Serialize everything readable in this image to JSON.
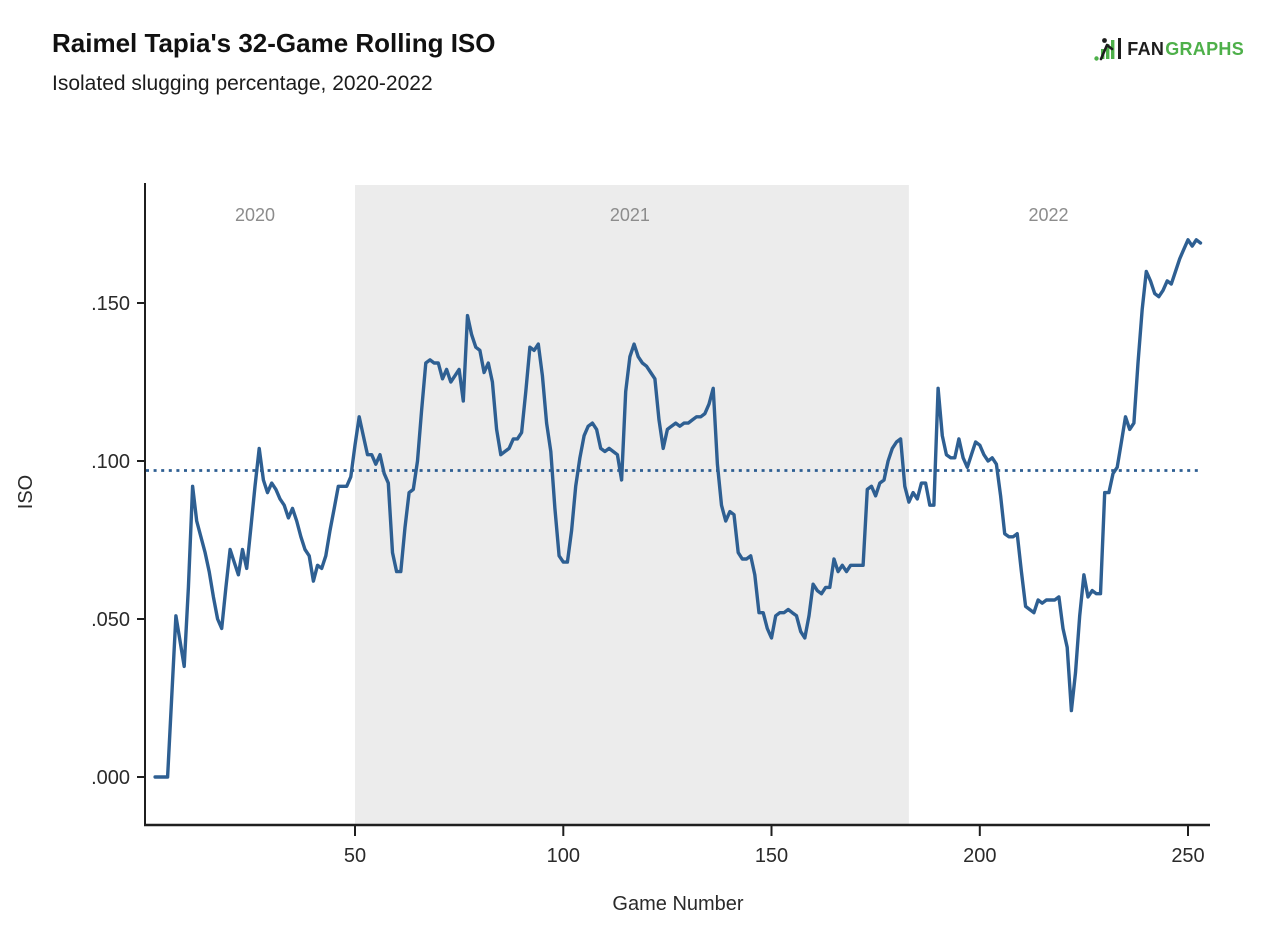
{
  "header": {
    "title": "Raimel Tapia's 32-Game Rolling ISO",
    "subtitle": "Isolated slugging percentage, 2020-2022",
    "logo": {
      "fan": "FAN",
      "graphs": "GRAPHS",
      "green": "#4eb04a",
      "dark": "#1d1d1d"
    }
  },
  "chart_data": {
    "type": "line",
    "title": "Raimel Tapia's 32-Game Rolling ISO",
    "subtitle": "Isolated slugging percentage, 2020-2022",
    "xlabel": "Game Number",
    "ylabel": "ISO",
    "line_color": "#2e5f92",
    "axis_color": "#1f1f1f",
    "tick_label_color": "#2a2a2a",
    "annotation_color": "#8c8c8c",
    "grid": false,
    "legend": "none",
    "xlim": [
      0,
      256
    ],
    "ylim": [
      -0.012,
      0.187
    ],
    "x_ticks": [
      {
        "v": 50,
        "label": "50"
      },
      {
        "v": 100,
        "label": "100"
      },
      {
        "v": 150,
        "label": "150"
      },
      {
        "v": 200,
        "label": "200"
      },
      {
        "v": 250,
        "label": "250"
      }
    ],
    "y_ticks": [
      {
        "v": 0.0,
        "label": ".000"
      },
      {
        "v": 0.05,
        "label": ".050"
      },
      {
        "v": 0.1,
        "label": ".100"
      },
      {
        "v": 0.15,
        "label": ".150"
      }
    ],
    "reference_line": {
      "value": 0.097,
      "style": "dotted"
    },
    "band": {
      "label": "2021",
      "x_start": 50,
      "x_end": 183,
      "color": "#ececec"
    },
    "annotations": [
      {
        "text": "2020",
        "x": 26
      },
      {
        "text": "2021",
        "x": 116
      },
      {
        "text": "2022",
        "x": 216.5
      }
    ],
    "series": [
      {
        "name": "32-game rolling ISO",
        "points": [
          [
            2,
            0
          ],
          [
            5,
            0
          ],
          [
            7,
            0.051
          ],
          [
            9,
            0.035
          ],
          [
            10,
            0.06
          ],
          [
            11,
            0.092
          ],
          [
            12,
            0.081
          ],
          [
            13,
            0.076
          ],
          [
            14,
            0.071
          ],
          [
            15,
            0.065
          ],
          [
            16,
            0.057
          ],
          [
            17,
            0.05
          ],
          [
            18,
            0.047
          ],
          [
            19,
            0.06
          ],
          [
            20,
            0.072
          ],
          [
            21,
            0.068
          ],
          [
            22,
            0.064
          ],
          [
            23,
            0.072
          ],
          [
            24,
            0.066
          ],
          [
            25,
            0.079
          ],
          [
            26,
            0.092
          ],
          [
            27,
            0.104
          ],
          [
            28,
            0.094
          ],
          [
            29,
            0.09
          ],
          [
            30,
            0.093
          ],
          [
            31,
            0.091
          ],
          [
            32,
            0.088
          ],
          [
            33,
            0.086
          ],
          [
            34,
            0.082
          ],
          [
            35,
            0.085
          ],
          [
            36,
            0.081
          ],
          [
            37,
            0.076
          ],
          [
            38,
            0.072
          ],
          [
            39,
            0.07
          ],
          [
            40,
            0.062
          ],
          [
            41,
            0.067
          ],
          [
            42,
            0.066
          ],
          [
            43,
            0.07
          ],
          [
            44,
            0.078
          ],
          [
            45,
            0.085
          ],
          [
            46,
            0.092
          ],
          [
            47,
            0.092
          ],
          [
            48,
            0.092
          ],
          [
            49,
            0.095
          ],
          [
            50,
            0.105
          ],
          [
            51,
            0.114
          ],
          [
            52,
            0.108
          ],
          [
            53,
            0.102
          ],
          [
            54,
            0.102
          ],
          [
            55,
            0.099
          ],
          [
            56,
            0.102
          ],
          [
            57,
            0.096
          ],
          [
            58,
            0.093
          ],
          [
            59,
            0.071
          ],
          [
            60,
            0.065
          ],
          [
            61,
            0.065
          ],
          [
            62,
            0.079
          ],
          [
            63,
            0.09
          ],
          [
            64,
            0.091
          ],
          [
            65,
            0.1
          ],
          [
            66,
            0.116
          ],
          [
            67,
            0.131
          ],
          [
            68,
            0.132
          ],
          [
            69,
            0.131
          ],
          [
            70,
            0.131
          ],
          [
            71,
            0.126
          ],
          [
            72,
            0.129
          ],
          [
            73,
            0.125
          ],
          [
            74,
            0.127
          ],
          [
            75,
            0.129
          ],
          [
            76,
            0.119
          ],
          [
            77,
            0.146
          ],
          [
            78,
            0.14
          ],
          [
            79,
            0.136
          ],
          [
            80,
            0.135
          ],
          [
            81,
            0.128
          ],
          [
            82,
            0.131
          ],
          [
            83,
            0.125
          ],
          [
            84,
            0.11
          ],
          [
            85,
            0.102
          ],
          [
            86,
            0.103
          ],
          [
            87,
            0.104
          ],
          [
            88,
            0.107
          ],
          [
            89,
            0.107
          ],
          [
            90,
            0.109
          ],
          [
            91,
            0.122
          ],
          [
            92,
            0.136
          ],
          [
            93,
            0.135
          ],
          [
            94,
            0.137
          ],
          [
            95,
            0.127
          ],
          [
            96,
            0.112
          ],
          [
            97,
            0.103
          ],
          [
            98,
            0.085
          ],
          [
            99,
            0.07
          ],
          [
            100,
            0.068
          ],
          [
            101,
            0.068
          ],
          [
            102,
            0.078
          ],
          [
            103,
            0.092
          ],
          [
            104,
            0.101
          ],
          [
            105,
            0.108
          ],
          [
            106,
            0.111
          ],
          [
            107,
            0.112
          ],
          [
            108,
            0.11
          ],
          [
            109,
            0.104
          ],
          [
            110,
            0.103
          ],
          [
            111,
            0.104
          ],
          [
            112,
            0.103
          ],
          [
            113,
            0.102
          ],
          [
            114,
            0.094
          ],
          [
            115,
            0.122
          ],
          [
            116,
            0.133
          ],
          [
            117,
            0.137
          ],
          [
            118,
            0.133
          ],
          [
            119,
            0.131
          ],
          [
            120,
            0.13
          ],
          [
            121,
            0.128
          ],
          [
            122,
            0.126
          ],
          [
            123,
            0.113
          ],
          [
            124,
            0.104
          ],
          [
            125,
            0.11
          ],
          [
            126,
            0.111
          ],
          [
            127,
            0.112
          ],
          [
            128,
            0.111
          ],
          [
            129,
            0.112
          ],
          [
            130,
            0.112
          ],
          [
            131,
            0.113
          ],
          [
            132,
            0.114
          ],
          [
            133,
            0.114
          ],
          [
            134,
            0.115
          ],
          [
            135,
            0.118
          ],
          [
            136,
            0.123
          ],
          [
            137,
            0.099
          ],
          [
            138,
            0.086
          ],
          [
            139,
            0.081
          ],
          [
            140,
            0.084
          ],
          [
            141,
            0.083
          ],
          [
            142,
            0.071
          ],
          [
            143,
            0.069
          ],
          [
            144,
            0.069
          ],
          [
            145,
            0.07
          ],
          [
            146,
            0.064
          ],
          [
            147,
            0.052
          ],
          [
            148,
            0.052
          ],
          [
            149,
            0.047
          ],
          [
            150,
            0.044
          ],
          [
            151,
            0.051
          ],
          [
            152,
            0.052
          ],
          [
            153,
            0.052
          ],
          [
            154,
            0.053
          ],
          [
            155,
            0.052
          ],
          [
            156,
            0.051
          ],
          [
            157,
            0.046
          ],
          [
            158,
            0.044
          ],
          [
            159,
            0.051
          ],
          [
            160,
            0.061
          ],
          [
            161,
            0.059
          ],
          [
            162,
            0.058
          ],
          [
            163,
            0.06
          ],
          [
            164,
            0.06
          ],
          [
            165,
            0.069
          ],
          [
            166,
            0.065
          ],
          [
            167,
            0.067
          ],
          [
            168,
            0.065
          ],
          [
            169,
            0.067
          ],
          [
            170,
            0.067
          ],
          [
            171,
            0.067
          ],
          [
            172,
            0.067
          ],
          [
            173,
            0.091
          ],
          [
            174,
            0.092
          ],
          [
            175,
            0.089
          ],
          [
            176,
            0.093
          ],
          [
            177,
            0.094
          ],
          [
            178,
            0.1
          ],
          [
            179,
            0.104
          ],
          [
            180,
            0.106
          ],
          [
            181,
            0.107
          ],
          [
            182,
            0.092
          ],
          [
            183,
            0.087
          ],
          [
            184,
            0.09
          ],
          [
            185,
            0.088
          ],
          [
            186,
            0.093
          ],
          [
            187,
            0.093
          ],
          [
            188,
            0.086
          ],
          [
            189,
            0.086
          ],
          [
            190,
            0.123
          ],
          [
            191,
            0.108
          ],
          [
            192,
            0.102
          ],
          [
            193,
            0.101
          ],
          [
            194,
            0.101
          ],
          [
            195,
            0.107
          ],
          [
            196,
            0.101
          ],
          [
            197,
            0.098
          ],
          [
            198,
            0.102
          ],
          [
            199,
            0.106
          ],
          [
            200,
            0.105
          ],
          [
            201,
            0.102
          ],
          [
            202,
            0.1
          ],
          [
            203,
            0.101
          ],
          [
            204,
            0.099
          ],
          [
            205,
            0.089
          ],
          [
            206,
            0.077
          ],
          [
            207,
            0.076
          ],
          [
            208,
            0.076
          ],
          [
            209,
            0.077
          ],
          [
            210,
            0.065
          ],
          [
            211,
            0.054
          ],
          [
            212,
            0.053
          ],
          [
            213,
            0.052
          ],
          [
            214,
            0.056
          ],
          [
            215,
            0.055
          ],
          [
            216,
            0.056
          ],
          [
            217,
            0.056
          ],
          [
            218,
            0.056
          ],
          [
            219,
            0.057
          ],
          [
            220,
            0.047
          ],
          [
            221,
            0.041
          ],
          [
            222,
            0.021
          ],
          [
            223,
            0.033
          ],
          [
            224,
            0.051
          ],
          [
            225,
            0.064
          ],
          [
            226,
            0.057
          ],
          [
            227,
            0.059
          ],
          [
            228,
            0.058
          ],
          [
            229,
            0.058
          ],
          [
            230,
            0.09
          ],
          [
            231,
            0.09
          ],
          [
            232,
            0.096
          ],
          [
            233,
            0.098
          ],
          [
            234,
            0.106
          ],
          [
            235,
            0.114
          ],
          [
            236,
            0.11
          ],
          [
            237,
            0.112
          ],
          [
            238,
            0.131
          ],
          [
            239,
            0.148
          ],
          [
            240,
            0.16
          ],
          [
            241,
            0.157
          ],
          [
            242,
            0.153
          ],
          [
            243,
            0.152
          ],
          [
            244,
            0.154
          ],
          [
            245,
            0.157
          ],
          [
            246,
            0.156
          ],
          [
            247,
            0.16
          ],
          [
            248,
            0.164
          ],
          [
            249,
            0.167
          ],
          [
            250,
            0.17
          ],
          [
            251,
            0.168
          ],
          [
            252,
            0.17
          ],
          [
            253,
            0.169
          ]
        ]
      }
    ]
  }
}
